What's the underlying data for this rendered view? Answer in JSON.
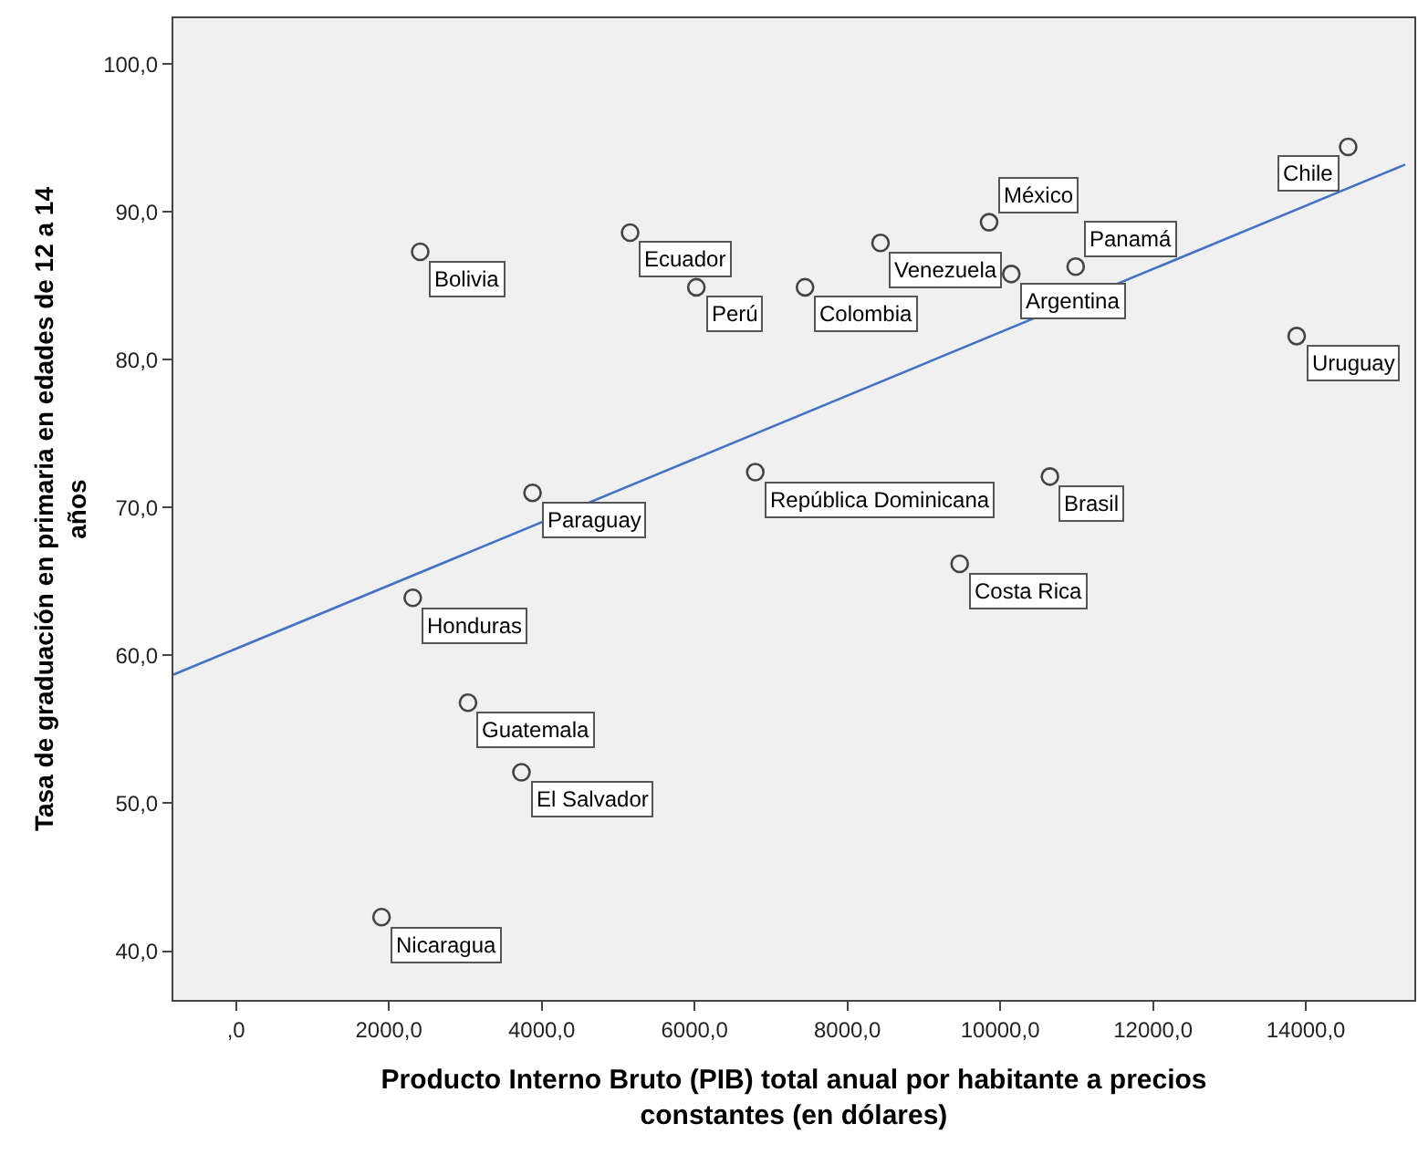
{
  "chart_data": {
    "type": "scatter",
    "xlabel": "Producto Interno Bruto (PIB) total anual por habitante a precios constantes (en dólares)",
    "ylabel": "Tasa de graduación en primaria en edades de 12 a 14 años",
    "xlim": [
      -820,
      15420
    ],
    "ylim": [
      36.7,
      103.1
    ],
    "xticks": [
      {
        "value": 0,
        "label": ",0"
      },
      {
        "value": 2000,
        "label": "2000,0"
      },
      {
        "value": 4000,
        "label": "4000,0"
      },
      {
        "value": 6000,
        "label": "6000,0"
      },
      {
        "value": 8000,
        "label": "8000,0"
      },
      {
        "value": 10000,
        "label": "10000,0"
      },
      {
        "value": 12000,
        "label": "12000,0"
      },
      {
        "value": 14000,
        "label": "14000,0"
      }
    ],
    "yticks": [
      {
        "value": 40,
        "label": "40,0"
      },
      {
        "value": 50,
        "label": "50,0"
      },
      {
        "value": 60,
        "label": "60,0"
      },
      {
        "value": 70,
        "label": "70,0"
      },
      {
        "value": 80,
        "label": "80,0"
      },
      {
        "value": 90,
        "label": "90,0"
      },
      {
        "value": 100,
        "label": "100,0"
      }
    ],
    "grid": false,
    "marker": "circle",
    "series": [
      {
        "color": "#444444",
        "x": [
          2410,
          5157,
          6024,
          8434,
          9855,
          10145,
          10988,
          7446,
          14554,
          13880,
          10651,
          6795,
          3880,
          9470,
          2313,
          3036,
          3735,
          1904
        ],
        "values": [
          87.3,
          88.6,
          84.9,
          87.9,
          89.3,
          85.8,
          86.3,
          84.9,
          94.4,
          81.6,
          72.1,
          72.4,
          71.0,
          66.2,
          63.9,
          56.8,
          52.1,
          42.3
        ]
      },
      {
        "type": "line",
        "marker": "none",
        "color": "#4472c4",
        "x": [
          -820,
          15300
        ],
        "values": [
          58.7,
          93.2
        ]
      }
    ],
    "annotations": [
      {
        "text": "Bolivia",
        "x": 2410,
        "y": 87.3
      },
      {
        "text": "Ecuador",
        "x": 5157,
        "y": 88.6
      },
      {
        "text": "Perú",
        "x": 6024,
        "y": 84.9
      },
      {
        "text": "Venezuela",
        "x": 8434,
        "y": 87.9
      },
      {
        "text": "México",
        "x": 9855,
        "y": 89.3
      },
      {
        "text": "Argentina",
        "x": 10145,
        "y": 85.8
      },
      {
        "text": "Panamá",
        "x": 10988,
        "y": 86.3
      },
      {
        "text": "Colombia",
        "x": 7446,
        "y": 84.9
      },
      {
        "text": "Chile",
        "x": 14554,
        "y": 94.4
      },
      {
        "text": "Uruguay",
        "x": 13880,
        "y": 81.6
      },
      {
        "text": "Brasil",
        "x": 10651,
        "y": 72.1
      },
      {
        "text": "República Dominicana",
        "x": 6795,
        "y": 72.4
      },
      {
        "text": "Paraguay",
        "x": 3880,
        "y": 71.0
      },
      {
        "text": "Costa Rica",
        "x": 9470,
        "y": 66.2
      },
      {
        "text": "Honduras",
        "x": 2313,
        "y": 63.9
      },
      {
        "text": "Guatemala",
        "x": 3036,
        "y": 56.8
      },
      {
        "text": "El Salvador",
        "x": 3735,
        "y": 52.1
      },
      {
        "text": "Nicaragua",
        "x": 1904,
        "y": 42.3
      }
    ]
  }
}
